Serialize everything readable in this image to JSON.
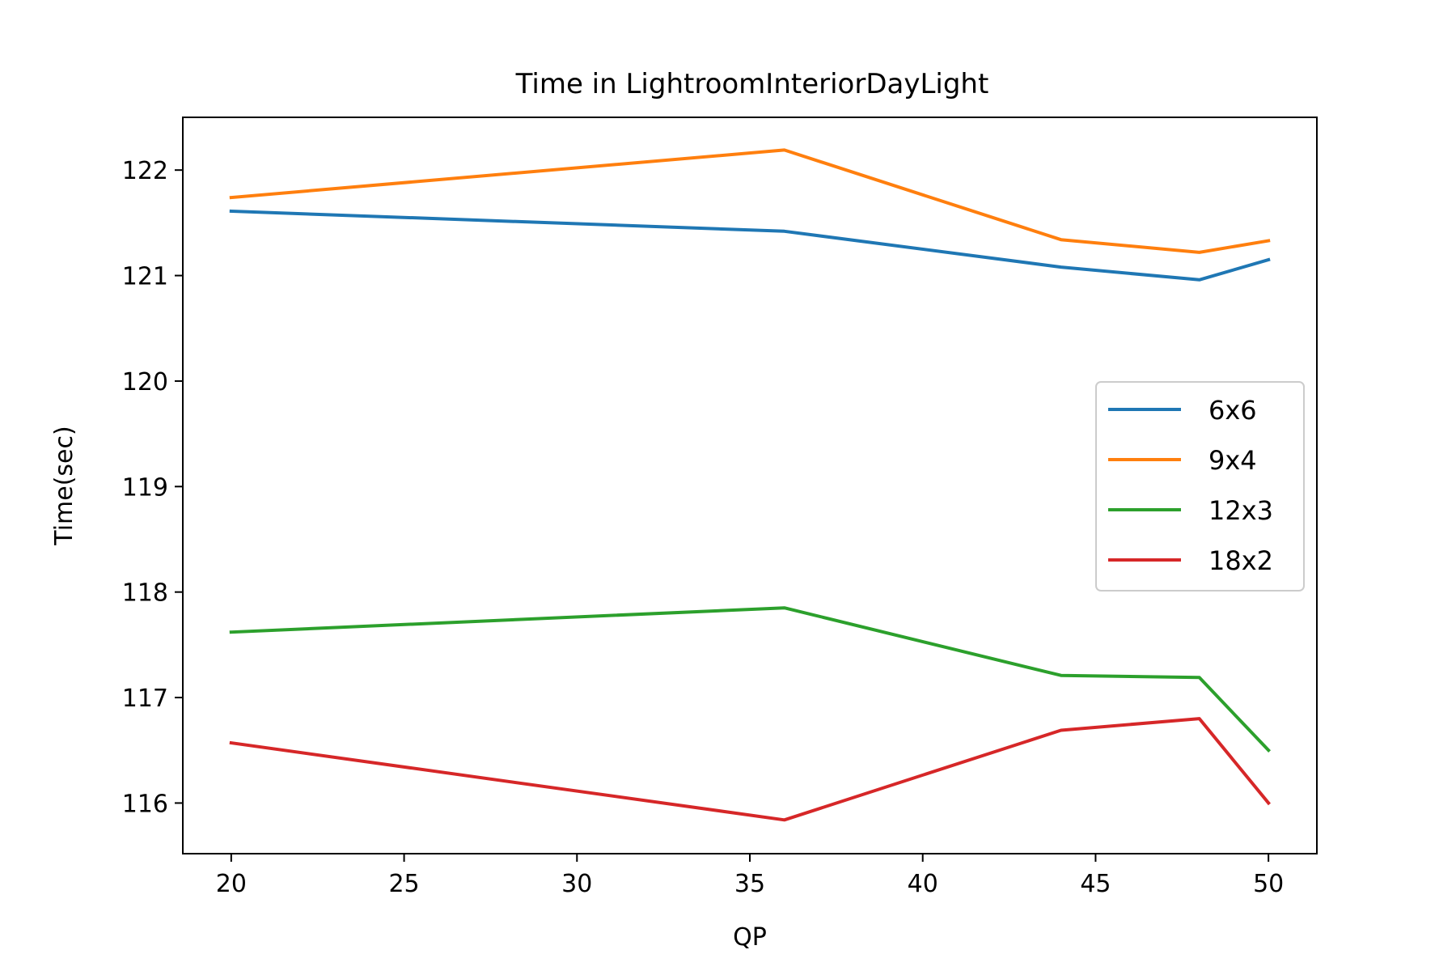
{
  "chart_data": {
    "type": "line",
    "title": "Time in LightroomInteriorDayLight",
    "xlabel": "QP",
    "ylabel": "Time(sec)",
    "xlim": [
      18.6,
      51.4
    ],
    "ylim": [
      115.52,
      122.5
    ],
    "x_ticks": [
      20,
      25,
      30,
      35,
      40,
      45,
      50
    ],
    "y_ticks": [
      116,
      117,
      118,
      119,
      120,
      121,
      122
    ],
    "grid": false,
    "legend_position": "center-right",
    "x": [
      20,
      36,
      44,
      48,
      50
    ],
    "series": [
      {
        "name": "6x6",
        "color": "#1f77b4",
        "values": [
          121.61,
          121.42,
          121.08,
          120.96,
          121.15
        ]
      },
      {
        "name": "9x4",
        "color": "#ff7f0e",
        "values": [
          121.74,
          122.19,
          121.34,
          121.22,
          121.33
        ]
      },
      {
        "name": "12x3",
        "color": "#2ca02c",
        "values": [
          117.62,
          117.85,
          117.21,
          117.19,
          116.5
        ]
      },
      {
        "name": "18x2",
        "color": "#d62728",
        "values": [
          116.57,
          115.84,
          116.69,
          116.8,
          116.0
        ]
      }
    ]
  }
}
